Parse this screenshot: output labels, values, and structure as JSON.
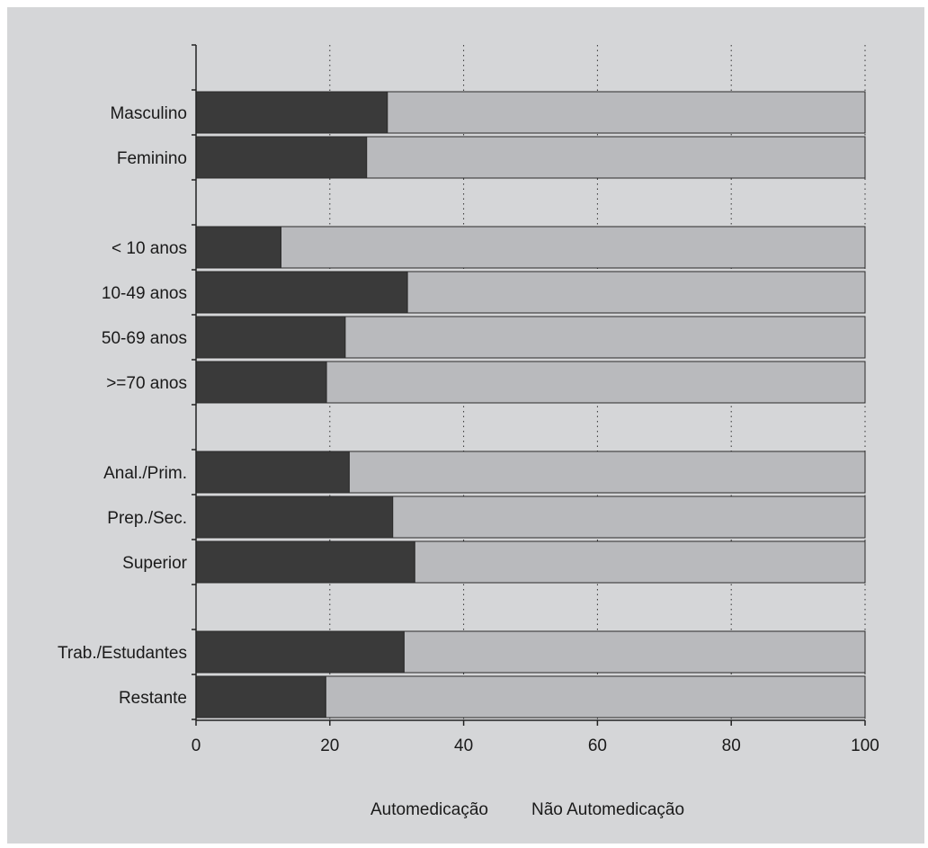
{
  "chart_data": {
    "type": "bar",
    "orientation": "horizontal",
    "stacked": "percent",
    "categories": [
      "Masculino",
      "Feminino",
      "< 10 anos",
      "10-49 anos",
      "50-69 anos",
      ">=70 anos",
      "Anal./Prim.",
      "Prep./Sec.",
      "Superior",
      "Trab./Estudantes",
      "Restante"
    ],
    "groups": [
      [
        "Masculino",
        "Feminino"
      ],
      [
        "< 10 anos",
        "10-49 anos",
        "50-69 anos",
        ">=70 anos"
      ],
      [
        "Anal./Prim.",
        "Prep./Sec.",
        "Superior"
      ],
      [
        "Trab./Estudantes",
        "Restante"
      ]
    ],
    "series": [
      {
        "name": "Automedicação",
        "color": "#3a3a3a",
        "values": [
          28.6,
          25.5,
          12.7,
          31.6,
          22.3,
          19.5,
          22.9,
          29.4,
          32.7,
          31.1,
          19.4
        ]
      },
      {
        "name": "Não Automedicação",
        "color": "#b9babd",
        "values": [
          71.4,
          74.5,
          87.3,
          68.4,
          77.7,
          80.5,
          77.1,
          70.6,
          67.3,
          68.9,
          80.6
        ]
      }
    ],
    "xlim": [
      0,
      100
    ],
    "xticks": [
      "0",
      "20",
      "40",
      "60",
      "80",
      "100"
    ],
    "grid": "vertical dotted",
    "legend": "bottom",
    "title": "",
    "xlabel": "",
    "ylabel": ""
  }
}
